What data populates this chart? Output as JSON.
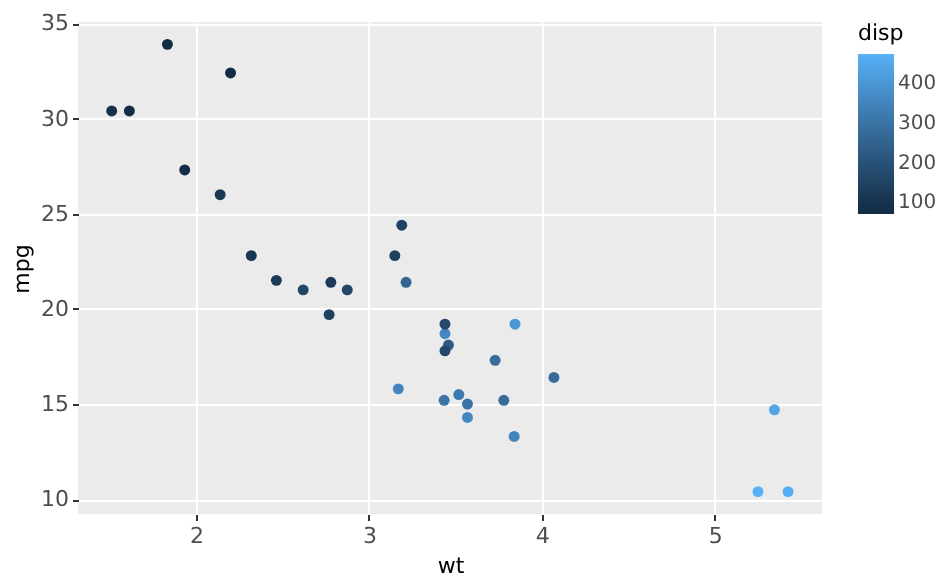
{
  "chart_data": {
    "type": "scatter",
    "xlabel": "wt",
    "ylabel": "mpg",
    "clabel": "disp",
    "x": [
      2.62,
      2.875,
      2.32,
      3.215,
      3.44,
      3.46,
      3.57,
      3.19,
      3.15,
      3.44,
      3.44,
      4.07,
      3.73,
      3.78,
      5.25,
      5.424,
      5.345,
      2.2,
      1.615,
      1.835,
      2.465,
      3.52,
      3.435,
      3.84,
      3.845,
      1.935,
      2.14,
      1.513,
      3.17,
      2.77,
      3.57,
      2.78
    ],
    "values": [
      21.0,
      21.0,
      22.8,
      21.4,
      18.7,
      18.1,
      14.3,
      24.4,
      22.8,
      19.2,
      17.8,
      16.4,
      17.3,
      15.2,
      10.4,
      10.4,
      14.7,
      32.4,
      30.4,
      33.9,
      21.5,
      15.5,
      15.2,
      13.3,
      19.2,
      27.3,
      26.0,
      30.4,
      15.8,
      19.7,
      15.0,
      21.4
    ],
    "cvalues": [
      160,
      160,
      108,
      258,
      360,
      225,
      360,
      147,
      141,
      168,
      168,
      276,
      276,
      276,
      472,
      460,
      440,
      79,
      76,
      71,
      120,
      318,
      304,
      350,
      400,
      79,
      120,
      95,
      351,
      145,
      301,
      121
    ],
    "xlim": [
      1.318,
      5.62
    ],
    "ylim": [
      9.225,
      35.075
    ],
    "xticks": [
      2,
      3,
      4,
      5
    ],
    "yticks": [
      10,
      15,
      20,
      25,
      30,
      35
    ],
    "clim": [
      71,
      472
    ],
    "cticks": [
      100,
      200,
      300,
      400
    ],
    "grid": true
  }
}
